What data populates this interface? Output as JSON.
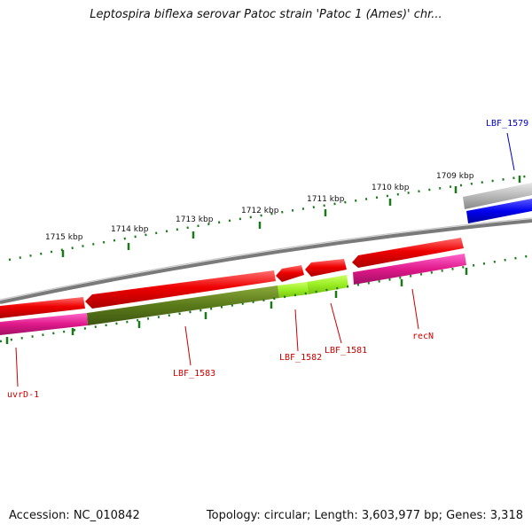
{
  "header": {
    "title": "Leptospira biflexa serovar Patoc strain 'Patoc 1 (Ames)' chr..."
  },
  "footer": {
    "accession": "Accession: NC_010842",
    "topology": "Topology: circular; Length: 3,603,977 bp; Genes: 3,318"
  },
  "scale": {
    "ticks": [
      "1709 kbp",
      "1710 kbp",
      "1711 kbp",
      "1712 kbp",
      "1713 kbp",
      "1714 kbp",
      "1715 kbp"
    ]
  },
  "genes": {
    "lbf_1579": "LBF_1579",
    "recn": "recN",
    "lbf_1581": "LBF_1581",
    "lbf_1582": "LBF_1582",
    "lbf_1583": "LBF_1583",
    "uvrd_1": "uvrD-1"
  },
  "colors": {
    "backbone": "#808080",
    "forward_cds": "#0000ee",
    "reverse_cds": "#ee0000",
    "forward_gene": "#b0b0b0",
    "reverse_gene": "#e0198a",
    "olive_gene": "#5a7a1a",
    "lime_gene": "#99ee22",
    "tick": "#1a7a1a",
    "label_red": "#cc0000",
    "label_blue": "#0000cc"
  }
}
